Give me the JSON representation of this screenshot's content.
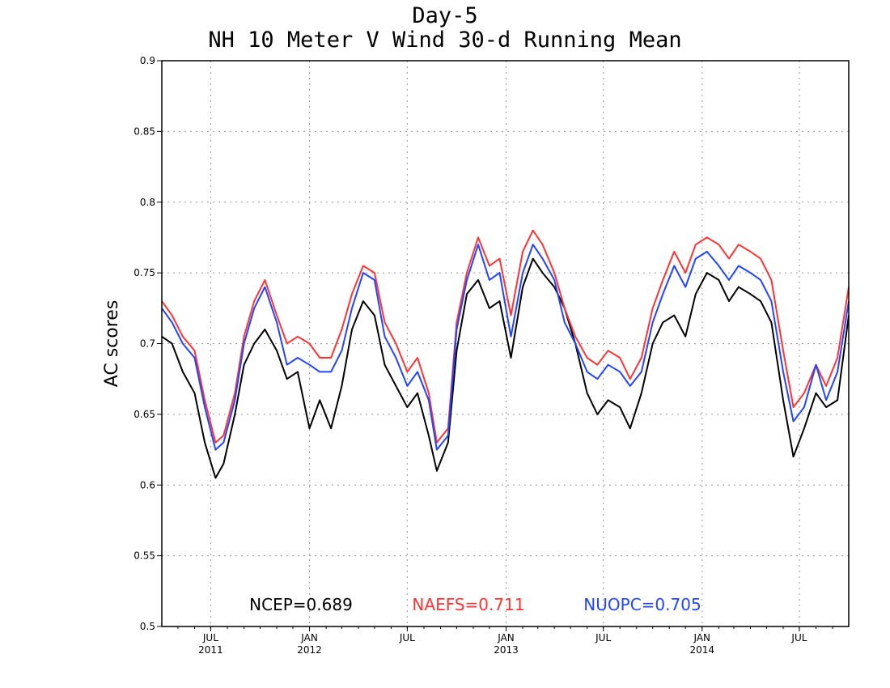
{
  "chart_data": {
    "type": "line",
    "title": "Day-5",
    "subtitle": "NH 10 Meter V Wind 30-d Running Mean",
    "ylabel": "AC scores",
    "xlabel": "",
    "ylim": [
      0.5,
      0.9
    ],
    "yticks": [
      0.5,
      0.55,
      0.6,
      0.65,
      0.7,
      0.75,
      0.8,
      0.85,
      0.9
    ],
    "xlim": [
      "2011-04-01",
      "2014-10-01"
    ],
    "xticks": [
      {
        "date": "2011-07-01",
        "label": "JUL",
        "year": "2011"
      },
      {
        "date": "2012-01-01",
        "label": "JAN",
        "year": "2012"
      },
      {
        "date": "2012-07-01",
        "label": "JUL",
        "year": ""
      },
      {
        "date": "2013-01-01",
        "label": "JAN",
        "year": "2013"
      },
      {
        "date": "2013-07-01",
        "label": "JUL",
        "year": ""
      },
      {
        "date": "2014-01-01",
        "label": "JAN",
        "year": "2014"
      },
      {
        "date": "2014-07-01",
        "label": "JUL",
        "year": ""
      }
    ],
    "grid": true,
    "series": [
      {
        "name": "NCEP",
        "legend": "NCEP=0.689",
        "color": "#000000",
        "x": [
          "2011-04-01",
          "2011-04-20",
          "2011-05-10",
          "2011-06-01",
          "2011-06-20",
          "2011-07-10",
          "2011-07-25",
          "2011-08-15",
          "2011-09-01",
          "2011-09-20",
          "2011-10-10",
          "2011-11-01",
          "2011-11-20",
          "2011-12-10",
          "2012-01-01",
          "2012-01-20",
          "2012-02-10",
          "2012-03-01",
          "2012-03-20",
          "2012-04-10",
          "2012-05-01",
          "2012-05-20",
          "2012-06-10",
          "2012-07-01",
          "2012-07-20",
          "2012-08-10",
          "2012-08-25",
          "2012-09-15",
          "2012-10-01",
          "2012-10-20",
          "2012-11-10",
          "2012-12-01",
          "2012-12-20",
          "2013-01-10",
          "2013-02-01",
          "2013-02-20",
          "2013-03-10",
          "2013-04-01",
          "2013-04-20",
          "2013-05-10",
          "2013-06-01",
          "2013-06-20",
          "2013-07-10",
          "2013-08-01",
          "2013-08-20",
          "2013-09-10",
          "2013-10-01",
          "2013-10-20",
          "2013-11-10",
          "2013-12-01",
          "2013-12-20",
          "2014-01-10",
          "2014-02-01",
          "2014-02-20",
          "2014-03-10",
          "2014-04-01",
          "2014-04-20",
          "2014-05-10",
          "2014-06-01",
          "2014-06-20",
          "2014-07-10",
          "2014-08-01",
          "2014-08-20",
          "2014-09-10",
          "2014-10-01"
        ],
        "values": [
          0.705,
          0.7,
          0.68,
          0.665,
          0.63,
          0.605,
          0.615,
          0.65,
          0.685,
          0.7,
          0.71,
          0.695,
          0.675,
          0.68,
          0.64,
          0.66,
          0.64,
          0.67,
          0.71,
          0.73,
          0.72,
          0.685,
          0.67,
          0.655,
          0.665,
          0.635,
          0.61,
          0.63,
          0.695,
          0.735,
          0.745,
          0.725,
          0.73,
          0.69,
          0.74,
          0.76,
          0.75,
          0.74,
          0.725,
          0.7,
          0.665,
          0.65,
          0.66,
          0.655,
          0.64,
          0.665,
          0.7,
          0.715,
          0.72,
          0.705,
          0.735,
          0.75,
          0.745,
          0.73,
          0.74,
          0.735,
          0.73,
          0.715,
          0.66,
          0.62,
          0.64,
          0.665,
          0.655,
          0.66,
          0.72
        ]
      },
      {
        "name": "NAEFS",
        "legend": "NAEFS=0.711",
        "color": "#ff3333",
        "x": [
          "2011-04-01",
          "2011-04-20",
          "2011-05-10",
          "2011-06-01",
          "2011-06-20",
          "2011-07-10",
          "2011-07-25",
          "2011-08-15",
          "2011-09-01",
          "2011-09-20",
          "2011-10-10",
          "2011-11-01",
          "2011-11-20",
          "2011-12-10",
          "2012-01-01",
          "2012-01-20",
          "2012-02-10",
          "2012-03-01",
          "2012-03-20",
          "2012-04-10",
          "2012-05-01",
          "2012-05-20",
          "2012-06-10",
          "2012-07-01",
          "2012-07-20",
          "2012-08-10",
          "2012-08-25",
          "2012-09-15",
          "2012-10-01",
          "2012-10-20",
          "2012-11-10",
          "2012-12-01",
          "2012-12-20",
          "2013-01-10",
          "2013-02-01",
          "2013-02-20",
          "2013-03-10",
          "2013-04-01",
          "2013-04-20",
          "2013-05-10",
          "2013-06-01",
          "2013-06-20",
          "2013-07-10",
          "2013-08-01",
          "2013-08-20",
          "2013-09-10",
          "2013-10-01",
          "2013-10-20",
          "2013-11-10",
          "2013-12-01",
          "2013-12-20",
          "2014-01-10",
          "2014-02-01",
          "2014-02-20",
          "2014-03-10",
          "2014-04-01",
          "2014-04-20",
          "2014-05-10",
          "2014-06-01",
          "2014-06-20",
          "2014-07-10",
          "2014-08-01",
          "2014-08-20",
          "2014-09-10",
          "2014-10-01"
        ],
        "values": [
          0.73,
          0.72,
          0.705,
          0.695,
          0.66,
          0.63,
          0.635,
          0.665,
          0.705,
          0.73,
          0.745,
          0.72,
          0.7,
          0.705,
          0.7,
          0.69,
          0.69,
          0.71,
          0.735,
          0.755,
          0.75,
          0.715,
          0.7,
          0.68,
          0.69,
          0.665,
          0.63,
          0.64,
          0.715,
          0.75,
          0.775,
          0.755,
          0.76,
          0.72,
          0.765,
          0.78,
          0.77,
          0.75,
          0.725,
          0.705,
          0.69,
          0.685,
          0.695,
          0.69,
          0.675,
          0.69,
          0.725,
          0.745,
          0.765,
          0.75,
          0.77,
          0.775,
          0.77,
          0.76,
          0.77,
          0.765,
          0.76,
          0.745,
          0.695,
          0.655,
          0.665,
          0.685,
          0.67,
          0.69,
          0.74
        ]
      },
      {
        "name": "NUOPC",
        "legend": "NUOPC=0.705",
        "color": "#2244ff",
        "x": [
          "2011-04-01",
          "2011-04-20",
          "2011-05-10",
          "2011-06-01",
          "2011-06-20",
          "2011-07-10",
          "2011-07-25",
          "2011-08-15",
          "2011-09-01",
          "2011-09-20",
          "2011-10-10",
          "2011-11-01",
          "2011-11-20",
          "2011-12-10",
          "2012-01-01",
          "2012-01-20",
          "2012-02-10",
          "2012-03-01",
          "2012-03-20",
          "2012-04-10",
          "2012-05-01",
          "2012-05-20",
          "2012-06-10",
          "2012-07-01",
          "2012-07-20",
          "2012-08-10",
          "2012-08-25",
          "2012-09-15",
          "2012-10-01",
          "2012-10-20",
          "2012-11-10",
          "2012-12-01",
          "2012-12-20",
          "2013-01-10",
          "2013-02-01",
          "2013-02-20",
          "2013-03-10",
          "2013-04-01",
          "2013-04-20",
          "2013-05-10",
          "2013-06-01",
          "2013-06-20",
          "2013-07-10",
          "2013-08-01",
          "2013-08-20",
          "2013-09-10",
          "2013-10-01",
          "2013-10-20",
          "2013-11-10",
          "2013-12-01",
          "2013-12-20",
          "2014-01-10",
          "2014-02-01",
          "2014-02-20",
          "2014-03-10",
          "2014-04-01",
          "2014-04-20",
          "2014-05-10",
          "2014-06-01",
          "2014-06-20",
          "2014-07-10",
          "2014-08-01",
          "2014-08-20",
          "2014-09-10",
          "2014-10-01"
        ],
        "values": [
          0.725,
          0.715,
          0.7,
          0.69,
          0.655,
          0.625,
          0.63,
          0.66,
          0.7,
          0.725,
          0.74,
          0.715,
          0.685,
          0.69,
          0.685,
          0.68,
          0.68,
          0.695,
          0.725,
          0.75,
          0.745,
          0.705,
          0.69,
          0.67,
          0.68,
          0.66,
          0.625,
          0.635,
          0.71,
          0.745,
          0.77,
          0.745,
          0.75,
          0.705,
          0.75,
          0.77,
          0.76,
          0.745,
          0.715,
          0.7,
          0.68,
          0.675,
          0.685,
          0.68,
          0.67,
          0.68,
          0.715,
          0.735,
          0.755,
          0.74,
          0.76,
          0.765,
          0.755,
          0.745,
          0.755,
          0.75,
          0.745,
          0.73,
          0.68,
          0.645,
          0.655,
          0.685,
          0.66,
          0.68,
          0.73
        ]
      }
    ]
  }
}
